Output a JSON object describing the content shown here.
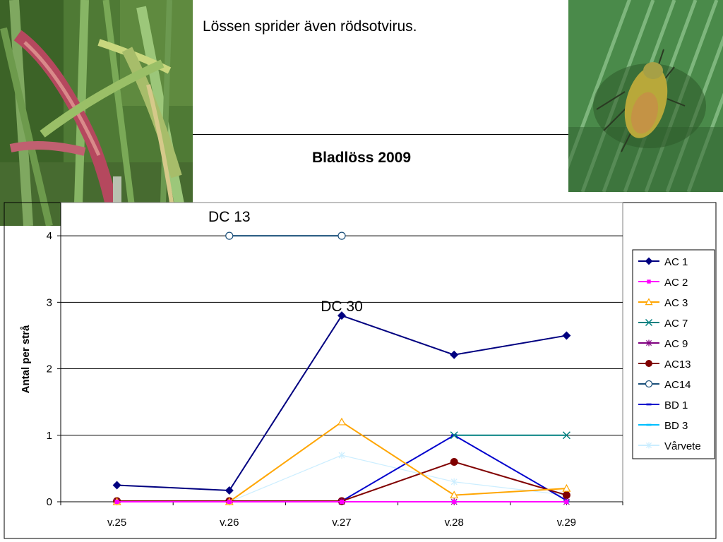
{
  "slide": {
    "text": "Lössen sprider även rödsotvirus.",
    "photo_left_description": "sick-barley-leaves",
    "photo_right_description": "green-aphid-on-leaf"
  },
  "chart_data": {
    "type": "line",
    "title": "Bladlöss 2009",
    "xlabel": "",
    "ylabel": "Antal per strå",
    "categories": [
      "v.25",
      "v.26",
      "v.27",
      "v.28",
      "v.29"
    ],
    "ylim": [
      0,
      4
    ],
    "yticks": [
      "0",
      "1",
      "2",
      "3",
      "4"
    ],
    "grid": true,
    "legend_position": "right",
    "annotations": [
      {
        "text": "DC 13",
        "x": "v.26",
        "y": 4.3
      },
      {
        "text": "DC 30",
        "x": "v.27",
        "y": 2.95
      }
    ],
    "series": [
      {
        "name": "AC 1",
        "color": "#000080",
        "marker": "diamond",
        "values": [
          0.25,
          0.17,
          2.8,
          2.21,
          2.5
        ]
      },
      {
        "name": "AC 2",
        "color": "#ff00ff",
        "marker": "square",
        "values": [
          0,
          0,
          0,
          0,
          0
        ]
      },
      {
        "name": "AC 3",
        "color": "#ffa500",
        "marker": "triangle",
        "values": [
          0,
          0,
          1.2,
          0.1,
          0.2
        ]
      },
      {
        "name": "AC 7",
        "color": "#008080",
        "marker": "x",
        "values": [
          null,
          null,
          null,
          1.0,
          1.0
        ]
      },
      {
        "name": "AC 9",
        "color": "#800080",
        "marker": "star",
        "values": [
          0,
          0,
          0,
          0,
          0
        ]
      },
      {
        "name": "AC13",
        "color": "#800000",
        "marker": "circle",
        "values": [
          0.01,
          0.01,
          0.01,
          0.6,
          0.1
        ]
      },
      {
        "name": "AC14",
        "color": "#1a4f7a",
        "marker": "open-circle",
        "values": [
          null,
          4.0,
          4.0,
          null,
          null
        ]
      },
      {
        "name": "BD 1",
        "color": "#0000cd",
        "marker": "dash",
        "values": [
          0.01,
          0.01,
          0.01,
          1.0,
          0.02
        ]
      },
      {
        "name": "BD 3",
        "color": "#00bfff",
        "marker": "dash",
        "values": [
          0,
          0,
          0,
          0,
          0
        ]
      },
      {
        "name": "Vårvete",
        "color": "#cceeff",
        "marker": "star",
        "values": [
          0,
          0,
          0.7,
          0.3,
          0.1
        ]
      }
    ]
  }
}
